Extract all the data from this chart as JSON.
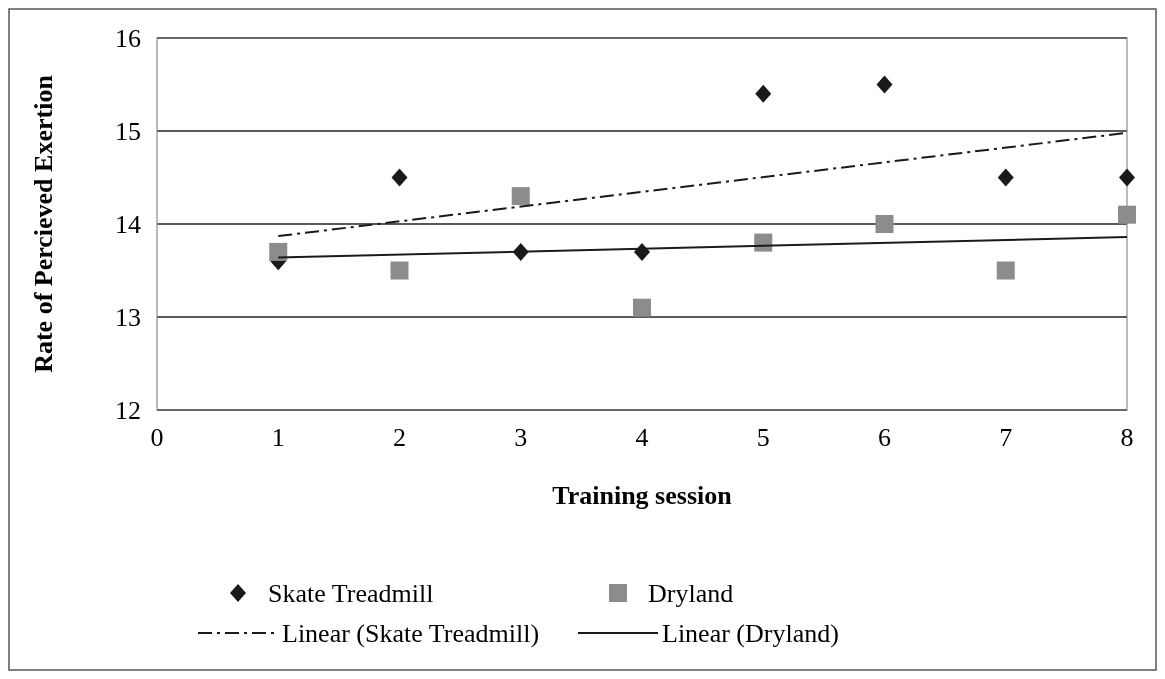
{
  "chart_data": {
    "type": "scatter",
    "xlabel": "Training session",
    "ylabel": "Rate of Percieved Exertion",
    "xlim": [
      0,
      8
    ],
    "xticks": [
      0,
      1,
      2,
      3,
      4,
      5,
      6,
      7,
      8
    ],
    "ylim": [
      12,
      16
    ],
    "yticks": [
      12,
      13,
      14,
      15,
      16
    ],
    "grid": "y",
    "legend": "bottom",
    "series": [
      {
        "name": "Skate Treadmill",
        "marker": "diamond",
        "color": "#1a1a1a",
        "x": [
          1,
          2,
          3,
          4,
          5,
          6,
          7,
          8
        ],
        "values": [
          13.6,
          14.5,
          13.7,
          13.7,
          15.4,
          15.5,
          14.5,
          14.5
        ]
      },
      {
        "name": "Dryland",
        "marker": "square",
        "color": "#8c8c8c",
        "x": [
          1,
          2,
          3,
          4,
          5,
          6,
          7,
          8
        ],
        "values": [
          13.7,
          13.5,
          14.3,
          13.1,
          13.8,
          14.0,
          13.5,
          14.1
        ]
      },
      {
        "name": "Linear (Skate Treadmill)",
        "type": "line",
        "line_style": "dashed",
        "color": "#1a1a1a",
        "x": [
          1,
          8
        ],
        "values": [
          13.87,
          14.98
        ]
      },
      {
        "name": "Linear (Dryland)",
        "type": "line",
        "line_style": "solid",
        "color": "#1a1a1a",
        "x": [
          1,
          8
        ],
        "values": [
          13.64,
          13.86
        ]
      }
    ]
  }
}
